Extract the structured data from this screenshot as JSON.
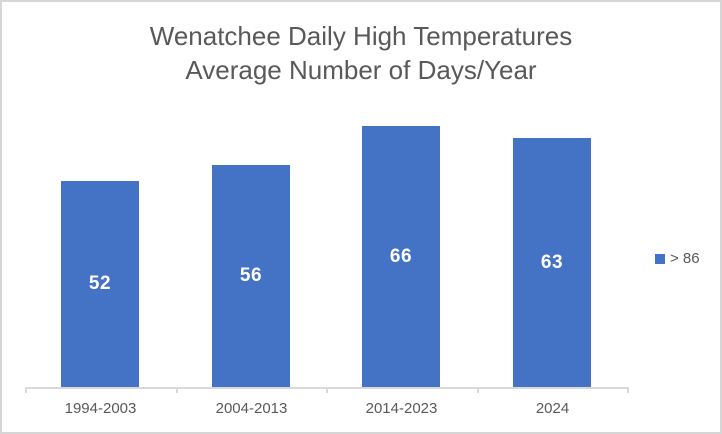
{
  "chart_data": {
    "type": "bar",
    "title": "Wenatchee Daily High Temperatures",
    "subtitle": "Average Number of Days/Year",
    "categories": [
      "1994-2003",
      "2004-2013",
      "2014-2023",
      "2024"
    ],
    "series": [
      {
        "name": "> 86",
        "values": [
          52,
          56,
          66,
          63
        ]
      }
    ],
    "xlabel": "",
    "ylabel": "",
    "ylim": [
      0,
      70
    ],
    "gridlines": false,
    "legend_position": "right",
    "data_labels_position": "center",
    "colors": {
      "bar": "#4472C4",
      "data_label": "#FFFFFF",
      "text": "#595959",
      "axis": "#D9D9D9"
    }
  }
}
